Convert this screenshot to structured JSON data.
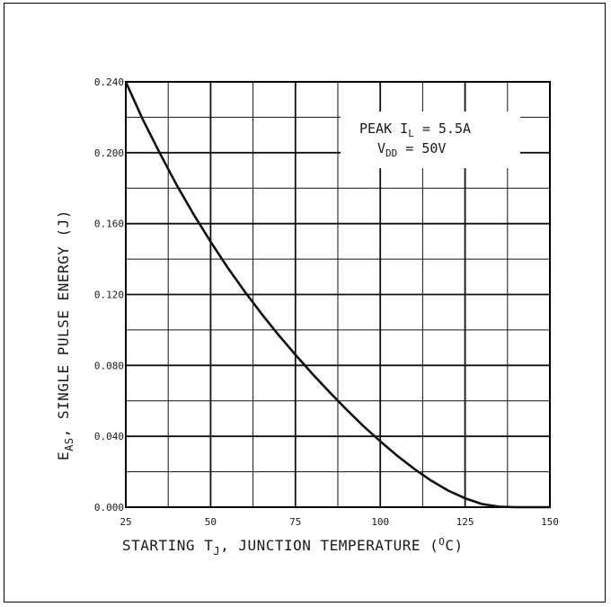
{
  "chart_data": {
    "type": "line",
    "xlabel": {
      "prefix": "STARTING T",
      "sub": "J",
      "suffix": ", JUNCTION TEMPERATURE (",
      "sup": "O",
      "unit": "C)"
    },
    "ylabel": {
      "prefix": "E",
      "sub": "AS",
      "suffix": ", SINGLE PULSE ENERGY (J)"
    },
    "xlim": [
      25,
      150
    ],
    "ylim": [
      0.0,
      0.24
    ],
    "x_ticks": [
      "25",
      "50",
      "75",
      "100",
      "125",
      "150"
    ],
    "y_ticks": [
      "0.000",
      "0.040",
      "0.080",
      "0.120",
      "0.160",
      "0.200",
      "0.240"
    ],
    "grid": true,
    "annotation": {
      "line1_prefix": "PEAK I",
      "line1_sub": "L",
      "line1_suffix": " = 5.5A",
      "line2_prefix": "V",
      "line2_sub": "DD",
      "line2_suffix": " = 50V"
    },
    "series": [
      {
        "x": [
          25,
          30,
          35,
          40,
          45,
          50,
          55,
          60,
          65,
          70,
          75,
          80,
          85,
          90,
          95,
          100,
          105,
          110,
          115,
          120,
          125,
          130,
          135,
          140,
          145,
          150
        ],
        "y": [
          0.24,
          0.2188,
          0.1998,
          0.1818,
          0.1652,
          0.1498,
          0.1352,
          0.1218,
          0.1092,
          0.0972,
          0.086,
          0.0752,
          0.065,
          0.0552,
          0.0458,
          0.0372,
          0.029,
          0.0216,
          0.015,
          0.0094,
          0.005,
          0.0018,
          0.0003,
          0.0,
          0.0,
          0.0
        ]
      }
    ]
  }
}
